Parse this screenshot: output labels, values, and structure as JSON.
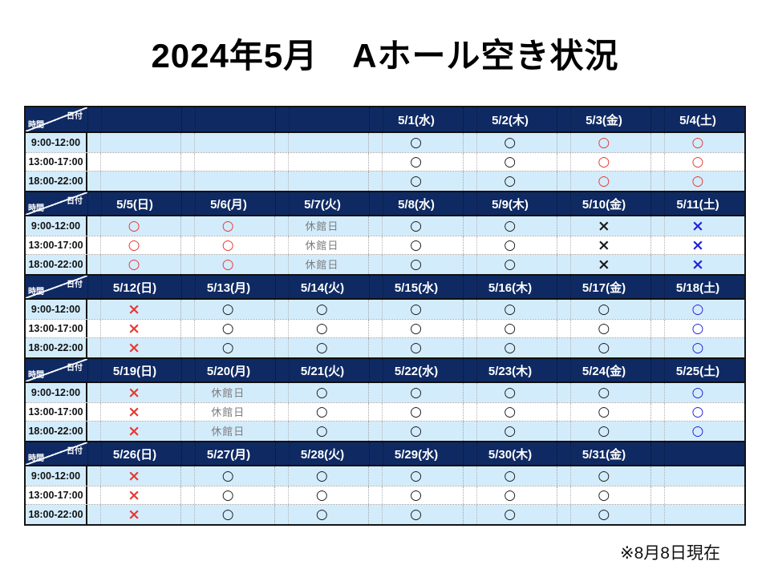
{
  "title": "2024年5月　Aホール空き状況",
  "footer_note": "※8月8日現在",
  "corner": {
    "date_label": "日付",
    "time_label": "時間"
  },
  "colors": {
    "navy_header": "#0f2a63",
    "row_light_blue": "#d3ecfc",
    "row_white": "#ffffff",
    "red": "#e63a33",
    "blue": "#2323d6",
    "black": "#1c1c1c",
    "gray": "#7d7d7d",
    "border_dark": "#141414"
  },
  "table": {
    "time_slots": [
      "9:00-12:00",
      "13:00-17:00",
      "18:00-22:00"
    ],
    "weeks": [
      {
        "dates": [
          "",
          "",
          "",
          "5/1(水)",
          "5/2(木)",
          "5/3(金)",
          "5/4(土)"
        ],
        "availability": [
          [
            {
              "glyph": "",
              "color": "black"
            },
            {
              "glyph": "",
              "color": "black"
            },
            {
              "glyph": "",
              "color": "black"
            },
            {
              "glyph": "○",
              "color": "black"
            },
            {
              "glyph": "○",
              "color": "black"
            },
            {
              "glyph": "○",
              "color": "red"
            },
            {
              "glyph": "○",
              "color": "red"
            }
          ],
          [
            {
              "glyph": "",
              "color": "black"
            },
            {
              "glyph": "",
              "color": "black"
            },
            {
              "glyph": "",
              "color": "black"
            },
            {
              "glyph": "○",
              "color": "black"
            },
            {
              "glyph": "○",
              "color": "black"
            },
            {
              "glyph": "○",
              "color": "red"
            },
            {
              "glyph": "○",
              "color": "red"
            }
          ],
          [
            {
              "glyph": "",
              "color": "black"
            },
            {
              "glyph": "",
              "color": "black"
            },
            {
              "glyph": "",
              "color": "black"
            },
            {
              "glyph": "○",
              "color": "black"
            },
            {
              "glyph": "○",
              "color": "black"
            },
            {
              "glyph": "○",
              "color": "red"
            },
            {
              "glyph": "○",
              "color": "red"
            }
          ]
        ]
      },
      {
        "dates": [
          "5/5(日)",
          "5/6(月)",
          "5/7(火)",
          "5/8(水)",
          "5/9(木)",
          "5/10(金)",
          "5/11(土)"
        ],
        "availability": [
          [
            {
              "glyph": "○",
              "color": "red"
            },
            {
              "glyph": "○",
              "color": "red"
            },
            {
              "glyph": "休館日",
              "color": "gray"
            },
            {
              "glyph": "○",
              "color": "black"
            },
            {
              "glyph": "○",
              "color": "black"
            },
            {
              "glyph": "×",
              "color": "black"
            },
            {
              "glyph": "×",
              "color": "blue"
            }
          ],
          [
            {
              "glyph": "○",
              "color": "red"
            },
            {
              "glyph": "○",
              "color": "red"
            },
            {
              "glyph": "休館日",
              "color": "gray"
            },
            {
              "glyph": "○",
              "color": "black"
            },
            {
              "glyph": "○",
              "color": "black"
            },
            {
              "glyph": "×",
              "color": "black"
            },
            {
              "glyph": "×",
              "color": "blue"
            }
          ],
          [
            {
              "glyph": "○",
              "color": "red"
            },
            {
              "glyph": "○",
              "color": "red"
            },
            {
              "glyph": "休館日",
              "color": "gray"
            },
            {
              "glyph": "○",
              "color": "black"
            },
            {
              "glyph": "○",
              "color": "black"
            },
            {
              "glyph": "×",
              "color": "black"
            },
            {
              "glyph": "×",
              "color": "blue"
            }
          ]
        ]
      },
      {
        "dates": [
          "5/12(日)",
          "5/13(月)",
          "5/14(火)",
          "5/15(水)",
          "5/16(木)",
          "5/17(金)",
          "5/18(土)"
        ],
        "availability": [
          [
            {
              "glyph": "×",
              "color": "red"
            },
            {
              "glyph": "○",
              "color": "black"
            },
            {
              "glyph": "○",
              "color": "black"
            },
            {
              "glyph": "○",
              "color": "black"
            },
            {
              "glyph": "○",
              "color": "black"
            },
            {
              "glyph": "○",
              "color": "black"
            },
            {
              "glyph": "○",
              "color": "blue"
            }
          ],
          [
            {
              "glyph": "×",
              "color": "red"
            },
            {
              "glyph": "○",
              "color": "black"
            },
            {
              "glyph": "○",
              "color": "black"
            },
            {
              "glyph": "○",
              "color": "black"
            },
            {
              "glyph": "○",
              "color": "black"
            },
            {
              "glyph": "○",
              "color": "black"
            },
            {
              "glyph": "○",
              "color": "blue"
            }
          ],
          [
            {
              "glyph": "×",
              "color": "red"
            },
            {
              "glyph": "○",
              "color": "black"
            },
            {
              "glyph": "○",
              "color": "black"
            },
            {
              "glyph": "○",
              "color": "black"
            },
            {
              "glyph": "○",
              "color": "black"
            },
            {
              "glyph": "○",
              "color": "black"
            },
            {
              "glyph": "○",
              "color": "blue"
            }
          ]
        ]
      },
      {
        "dates": [
          "5/19(日)",
          "5/20(月)",
          "5/21(火)",
          "5/22(水)",
          "5/23(木)",
          "5/24(金)",
          "5/25(土)"
        ],
        "availability": [
          [
            {
              "glyph": "×",
              "color": "red"
            },
            {
              "glyph": "休館日",
              "color": "gray"
            },
            {
              "glyph": "○",
              "color": "black"
            },
            {
              "glyph": "○",
              "color": "black"
            },
            {
              "glyph": "○",
              "color": "black"
            },
            {
              "glyph": "○",
              "color": "black"
            },
            {
              "glyph": "○",
              "color": "blue"
            }
          ],
          [
            {
              "glyph": "×",
              "color": "red"
            },
            {
              "glyph": "休館日",
              "color": "gray"
            },
            {
              "glyph": "○",
              "color": "black"
            },
            {
              "glyph": "○",
              "color": "black"
            },
            {
              "glyph": "○",
              "color": "black"
            },
            {
              "glyph": "○",
              "color": "black"
            },
            {
              "glyph": "○",
              "color": "blue"
            }
          ],
          [
            {
              "glyph": "×",
              "color": "red"
            },
            {
              "glyph": "休館日",
              "color": "gray"
            },
            {
              "glyph": "○",
              "color": "black"
            },
            {
              "glyph": "○",
              "color": "black"
            },
            {
              "glyph": "○",
              "color": "black"
            },
            {
              "glyph": "○",
              "color": "black"
            },
            {
              "glyph": "○",
              "color": "blue"
            }
          ]
        ]
      },
      {
        "dates": [
          "5/26(日)",
          "5/27(月)",
          "5/28(火)",
          "5/29(水)",
          "5/30(木)",
          "5/31(金)",
          ""
        ],
        "availability": [
          [
            {
              "glyph": "×",
              "color": "red"
            },
            {
              "glyph": "○",
              "color": "black"
            },
            {
              "glyph": "○",
              "color": "black"
            },
            {
              "glyph": "○",
              "color": "black"
            },
            {
              "glyph": "○",
              "color": "black"
            },
            {
              "glyph": "○",
              "color": "black"
            },
            {
              "glyph": "",
              "color": "black"
            }
          ],
          [
            {
              "glyph": "×",
              "color": "red"
            },
            {
              "glyph": "○",
              "color": "black"
            },
            {
              "glyph": "○",
              "color": "black"
            },
            {
              "glyph": "○",
              "color": "black"
            },
            {
              "glyph": "○",
              "color": "black"
            },
            {
              "glyph": "○",
              "color": "black"
            },
            {
              "glyph": "",
              "color": "black"
            }
          ],
          [
            {
              "glyph": "×",
              "color": "red"
            },
            {
              "glyph": "○",
              "color": "black"
            },
            {
              "glyph": "○",
              "color": "black"
            },
            {
              "glyph": "○",
              "color": "black"
            },
            {
              "glyph": "○",
              "color": "black"
            },
            {
              "glyph": "○",
              "color": "black"
            },
            {
              "glyph": "",
              "color": "black"
            }
          ]
        ]
      }
    ]
  }
}
